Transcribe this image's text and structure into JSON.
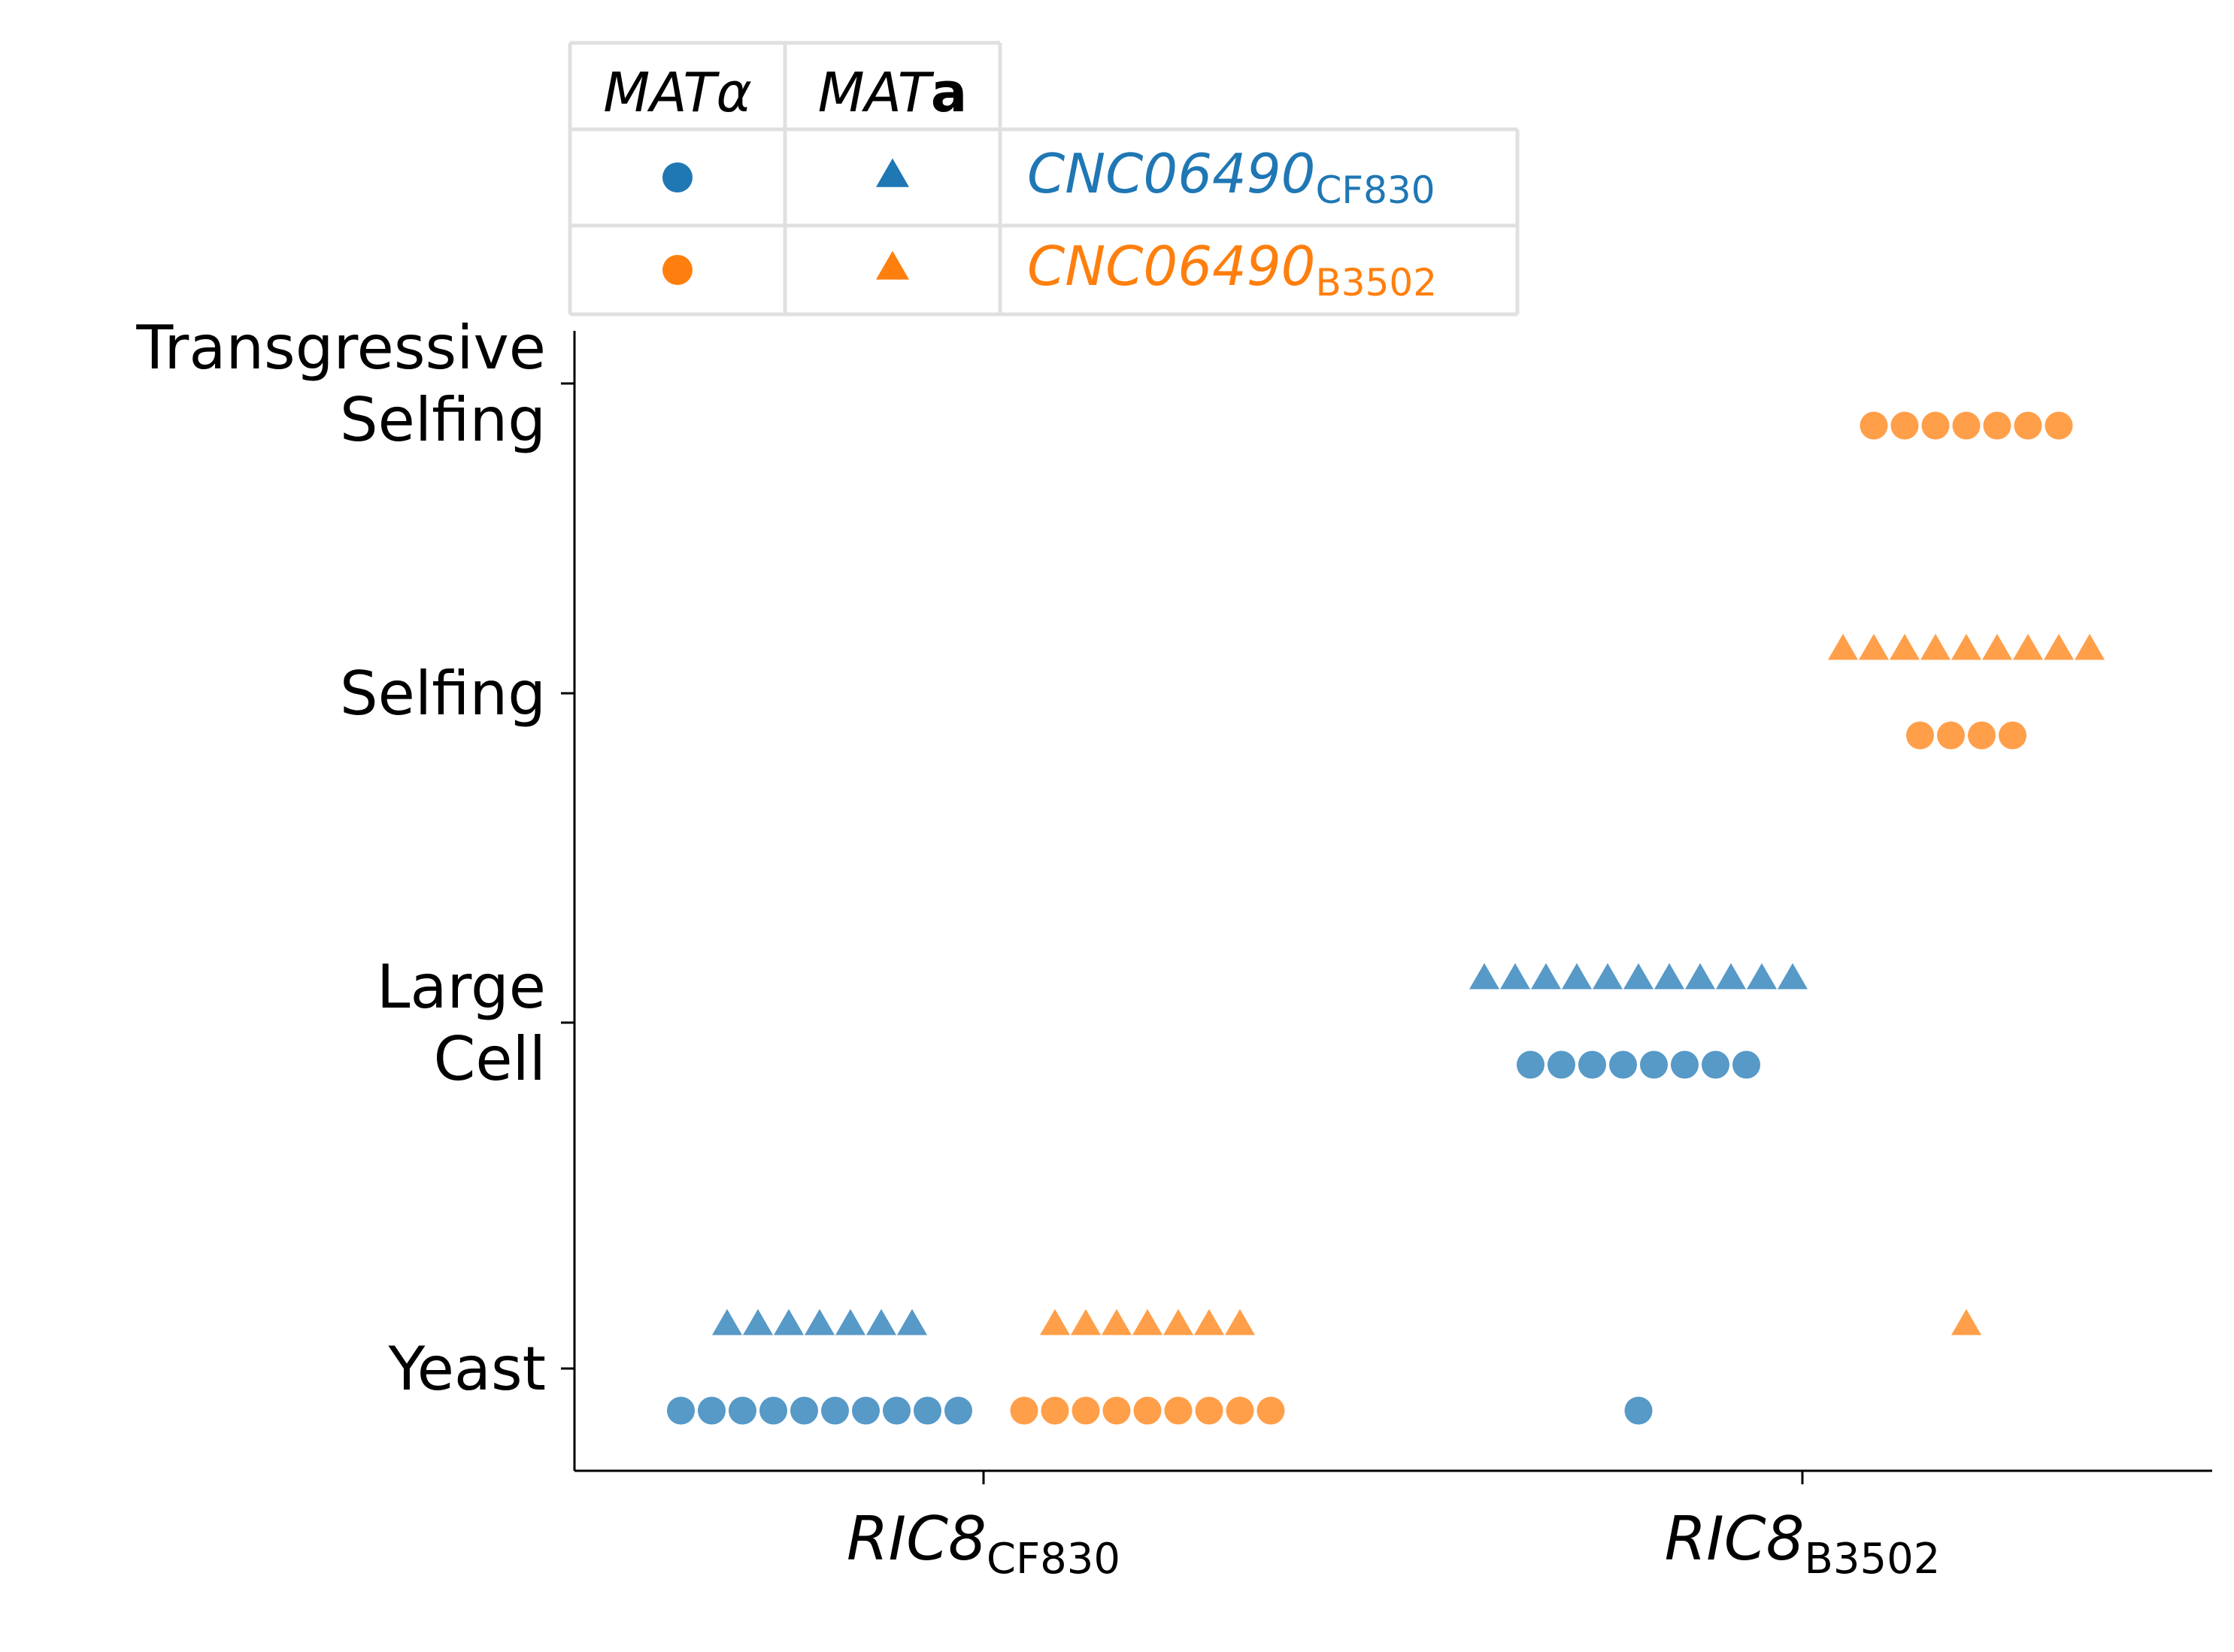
{
  "chart_data": {
    "type": "scatter",
    "categories": [
      "RIC8CF830",
      "RIC8B3502"
    ],
    "x_labels": [
      {
        "main": "RIC8",
        "sub": "CF830"
      },
      {
        "main": "RIC8",
        "sub": "B3502"
      }
    ],
    "y_categories": [
      {
        "lines": [
          "Yeast"
        ]
      },
      {
        "lines": [
          "Large",
          "Cell"
        ]
      },
      {
        "lines": [
          "Selfing"
        ]
      },
      {
        "lines": [
          "Transgressive",
          "Selfing"
        ]
      }
    ],
    "legend": {
      "headers": [
        {
          "main": "MAT",
          "suffix": "α",
          "bold_suffix": false
        },
        {
          "main": "MAT",
          "suffix": "a",
          "bold_suffix": true
        }
      ],
      "rows": [
        {
          "gene": "CNC06490",
          "sub": "CF830",
          "color": "#1f77b4"
        },
        {
          "gene": "CNC06490",
          "sub": "B3502",
          "color": "#ff7f0e"
        }
      ]
    },
    "series": [
      {
        "allele": "CF830",
        "mating_type": "alpha",
        "marker": "circle",
        "color": "#1f77b4",
        "counts": [
          [
            10,
            0,
            0,
            0
          ],
          [
            1,
            8,
            0,
            0
          ]
        ]
      },
      {
        "allele": "CF830",
        "mating_type": "a",
        "marker": "triangle",
        "color": "#1f77b4",
        "counts": [
          [
            7,
            0,
            0,
            0
          ],
          [
            0,
            11,
            0,
            0
          ]
        ]
      },
      {
        "allele": "B3502",
        "mating_type": "alpha",
        "marker": "circle",
        "color": "#ff7f0e",
        "counts": [
          [
            9,
            0,
            0,
            0
          ],
          [
            0,
            0,
            4,
            7
          ]
        ]
      },
      {
        "allele": "B3502",
        "mating_type": "a",
        "marker": "triangle",
        "color": "#ff7f0e",
        "counts": [
          [
            7,
            0,
            0,
            0
          ],
          [
            1,
            0,
            9,
            0
          ]
        ]
      }
    ],
    "grid": false
  }
}
